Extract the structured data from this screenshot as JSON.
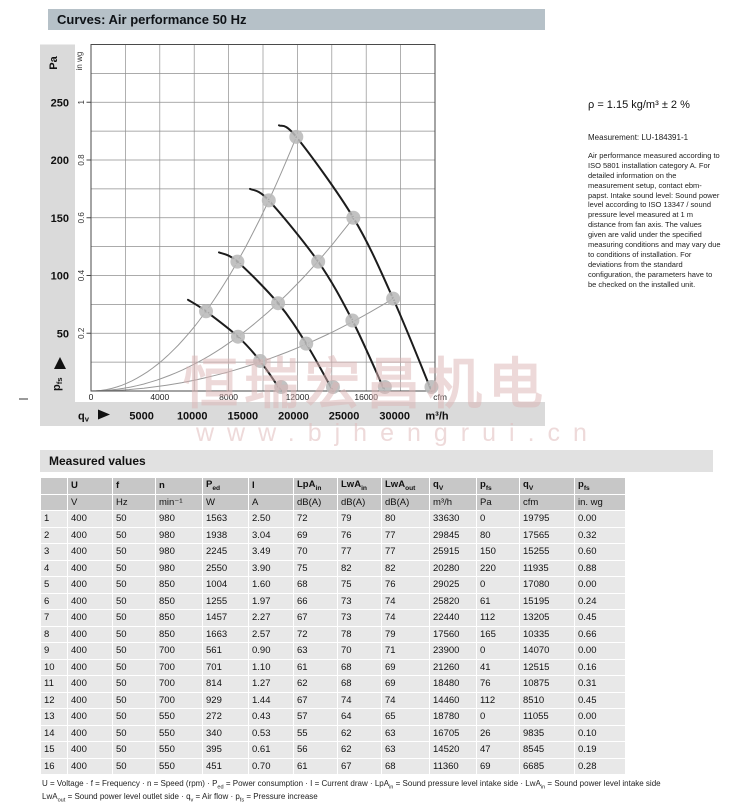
{
  "page": {
    "header_title": "Curves: Air performance 50 Hz",
    "density_note": "ρ = 1.15 kg/m³ ± 2 %",
    "measurement_label": "Measurement: LU-184391-1",
    "description": "Air performance measured according to ISO 5801 installation category A. For detailed information on the measurement setup, contact ebm-papst. Intake sound level: Sound power level according to ISO 13347 / sound pressure level measured at 1 m distance from fan axis. The values given are valid under the specified measuring conditions and may vary due to conditions of installation. For deviations from the standard configuration, the parameters have to be checked on the installed unit."
  },
  "watermark": {
    "line1": "恒瑞宏昌机电",
    "line2": "www.bjhengrui.cn"
  },
  "colors": {
    "header_bar": "#b6c1c8",
    "axis_band": "#dadada",
    "table_header": "#c7c7c7",
    "table_cell": "#e8e8e8",
    "fan_curve": "#1c1c1c",
    "system_curve": "#999999",
    "point_marker": "#b9b9b9",
    "watermark": "#dbb4b4"
  },
  "chart_data": {
    "type": "line",
    "title": "Curves: Air performance 50 Hz",
    "y_axis": {
      "primary_unit": "Pa",
      "primary_label": "p{fs}",
      "primary_ticks_pa": [
        50,
        100,
        150,
        200,
        250
      ],
      "secondary_unit": "in wg",
      "secondary_ticks_inwg": [
        0.2,
        0.4,
        0.6,
        0.8,
        1
      ],
      "range_pa": [
        0,
        300
      ],
      "grid_step_pa": 25
    },
    "x_axis": {
      "primary_label": "q{v}",
      "cfm_unit": "cfm",
      "cfm_ticks": [
        0,
        4000,
        8000,
        12000,
        16000
      ],
      "m3h_unit": "m³/h",
      "m3h_ticks": [
        5000,
        10000,
        15000,
        20000,
        25000,
        30000
      ],
      "range_cfm": [
        0,
        20000
      ],
      "grid_step_cfm": 2000
    },
    "fan_curves": [
      {
        "speed_rpm": 980,
        "points_m3h_pa": [
          [
            18570,
            230
          ],
          [
            20280,
            220
          ],
          [
            25915,
            150
          ],
          [
            29845,
            80
          ],
          [
            33630,
            0
          ]
        ]
      },
      {
        "speed_rpm": 850,
        "points_m3h_pa": [
          [
            15706,
            175
          ],
          [
            17560,
            165
          ],
          [
            22440,
            112
          ],
          [
            25820,
            61
          ],
          [
            29025,
            0
          ]
        ]
      },
      {
        "speed_rpm": 700,
        "points_m3h_pa": [
          [
            12644,
            120
          ],
          [
            14460,
            112
          ],
          [
            18480,
            76
          ],
          [
            21260,
            41
          ],
          [
            23900,
            0
          ]
        ]
      },
      {
        "speed_rpm": 550,
        "points_m3h_pa": [
          [
            9582,
            79
          ],
          [
            11360,
            69
          ],
          [
            14520,
            47
          ],
          [
            16705,
            26
          ],
          [
            18780,
            0
          ]
        ]
      }
    ],
    "system_curves": [
      {
        "through_points": [
          4,
          8,
          12,
          16
        ],
        "ref_m3h": 20280,
        "ref_pa": 220
      },
      {
        "through_points": [
          3,
          7,
          11,
          15
        ],
        "ref_m3h": 25915,
        "ref_pa": 150
      },
      {
        "through_points": [
          2,
          6,
          10,
          14
        ],
        "ref_m3h": 29845,
        "ref_pa": 80
      }
    ],
    "operating_points": [
      {
        "id": 1,
        "m3h": 33630,
        "pa": 0
      },
      {
        "id": 2,
        "m3h": 29845,
        "pa": 80
      },
      {
        "id": 3,
        "m3h": 25915,
        "pa": 150
      },
      {
        "id": 4,
        "m3h": 20280,
        "pa": 220
      },
      {
        "id": 5,
        "m3h": 29025,
        "pa": 0
      },
      {
        "id": 6,
        "m3h": 25820,
        "pa": 61
      },
      {
        "id": 7,
        "m3h": 22440,
        "pa": 112
      },
      {
        "id": 8,
        "m3h": 17560,
        "pa": 165
      },
      {
        "id": 9,
        "m3h": 23900,
        "pa": 0
      },
      {
        "id": 10,
        "m3h": 21260,
        "pa": 41
      },
      {
        "id": 11,
        "m3h": 18480,
        "pa": 76
      },
      {
        "id": 12,
        "m3h": 14460,
        "pa": 112
      },
      {
        "id": 13,
        "m3h": 18780,
        "pa": 0
      },
      {
        "id": 14,
        "m3h": 16705,
        "pa": 26
      },
      {
        "id": 15,
        "m3h": 14520,
        "pa": 47
      },
      {
        "id": 16,
        "m3h": 11360,
        "pa": 69
      }
    ]
  },
  "table": {
    "section_title": "Measured values",
    "columns": [
      "",
      "U",
      "f",
      "n",
      "P{ed}",
      "I",
      "LpA{in}",
      "LwA{in}",
      "LwA{out}",
      "q{V}",
      "p{fs}",
      "q{V}",
      "p{fs}"
    ],
    "units": [
      "",
      "V",
      "Hz",
      "min⁻¹",
      "W",
      "A",
      "dB(A)",
      "dB(A)",
      "dB(A)",
      "m³/h",
      "Pa",
      "cfm",
      "in. wg"
    ],
    "rows": [
      [
        "1",
        "400",
        "50",
        "980",
        "1563",
        "2.50",
        "72",
        "79",
        "80",
        "33630",
        "0",
        "19795",
        "0.00"
      ],
      [
        "2",
        "400",
        "50",
        "980",
        "1938",
        "3.04",
        "69",
        "76",
        "77",
        "29845",
        "80",
        "17565",
        "0.32"
      ],
      [
        "3",
        "400",
        "50",
        "980",
        "2245",
        "3.49",
        "70",
        "77",
        "77",
        "25915",
        "150",
        "15255",
        "0.60"
      ],
      [
        "4",
        "400",
        "50",
        "980",
        "2550",
        "3.90",
        "75",
        "82",
        "82",
        "20280",
        "220",
        "11935",
        "0.88"
      ],
      [
        "5",
        "400",
        "50",
        "850",
        "1004",
        "1.60",
        "68",
        "75",
        "76",
        "29025",
        "0",
        "17080",
        "0.00"
      ],
      [
        "6",
        "400",
        "50",
        "850",
        "1255",
        "1.97",
        "66",
        "73",
        "74",
        "25820",
        "61",
        "15195",
        "0.24"
      ],
      [
        "7",
        "400",
        "50",
        "850",
        "1457",
        "2.27",
        "67",
        "73",
        "74",
        "22440",
        "112",
        "13205",
        "0.45"
      ],
      [
        "8",
        "400",
        "50",
        "850",
        "1663",
        "2.57",
        "72",
        "78",
        "79",
        "17560",
        "165",
        "10335",
        "0.66"
      ],
      [
        "9",
        "400",
        "50",
        "700",
        "561",
        "0.90",
        "63",
        "70",
        "71",
        "23900",
        "0",
        "14070",
        "0.00"
      ],
      [
        "10",
        "400",
        "50",
        "700",
        "701",
        "1.10",
        "61",
        "68",
        "69",
        "21260",
        "41",
        "12515",
        "0.16"
      ],
      [
        "11",
        "400",
        "50",
        "700",
        "814",
        "1.27",
        "62",
        "68",
        "69",
        "18480",
        "76",
        "10875",
        "0.31"
      ],
      [
        "12",
        "400",
        "50",
        "700",
        "929",
        "1.44",
        "67",
        "74",
        "74",
        "14460",
        "112",
        "8510",
        "0.45"
      ],
      [
        "13",
        "400",
        "50",
        "550",
        "272",
        "0.43",
        "57",
        "64",
        "65",
        "18780",
        "0",
        "11055",
        "0.00"
      ],
      [
        "14",
        "400",
        "50",
        "550",
        "340",
        "0.53",
        "55",
        "62",
        "63",
        "16705",
        "26",
        "9835",
        "0.10"
      ],
      [
        "15",
        "400",
        "50",
        "550",
        "395",
        "0.61",
        "56",
        "62",
        "63",
        "14520",
        "47",
        "8545",
        "0.19"
      ],
      [
        "16",
        "400",
        "50",
        "550",
        "451",
        "0.70",
        "61",
        "67",
        "68",
        "11360",
        "69",
        "6685",
        "0.28"
      ]
    ],
    "footnote1": "U = Voltage · f = Frequency · n = Speed (rpm) · P{ed} = Power consumption · I = Current draw · LpA{in} = Sound pressure level intake side · LwA{in} = Sound power level intake side",
    "footnote2": "LwA{out} = Sound power level outlet side · q{v} = Air flow · p{fs} = Pressure increase"
  }
}
